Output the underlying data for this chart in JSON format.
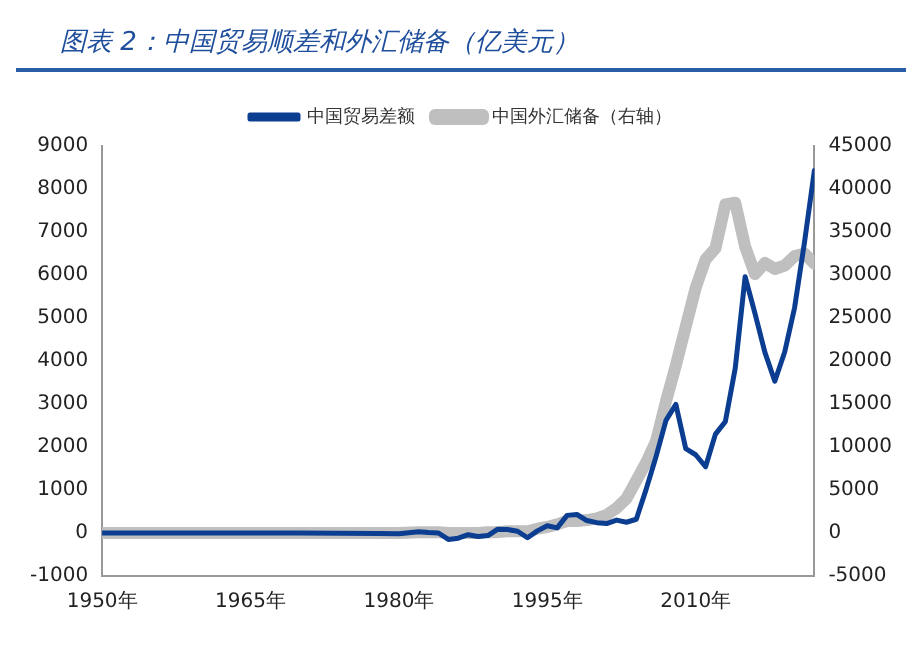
{
  "chart_data": {
    "type": "line",
    "title": "图表 2：中国贸易顺差和外汇储备（亿美元）",
    "x": [
      1950,
      1960,
      1970,
      1978,
      1980,
      1982,
      1983,
      1984,
      1985,
      1986,
      1987,
      1988,
      1989,
      1990,
      1991,
      1992,
      1993,
      1994,
      1995,
      1996,
      1997,
      1998,
      1999,
      2000,
      2001,
      2002,
      2003,
      2004,
      2005,
      2006,
      2007,
      2008,
      2009,
      2010,
      2011,
      2012,
      2013,
      2014,
      2015,
      2016,
      2017,
      2018,
      2019,
      2020,
      2021,
      2022
    ],
    "series": [
      {
        "name": "中国贸易差额",
        "color": "#0b3d91",
        "values": [
          0,
          0,
          0,
          -10,
          -20,
          30,
          10,
          0,
          -150,
          -120,
          -40,
          -80,
          -60,
          90,
          80,
          40,
          -110,
          50,
          170,
          120,
          410,
          430,
          290,
          240,
          220,
          300,
          250,
          320,
          1020,
          1780,
          2620,
          2990,
          1960,
          1820,
          1540,
          2300,
          2590,
          3830,
          5960,
          5100,
          4200,
          3530,
          4210,
          5240,
          6760,
          8430
        ]
      },
      {
        "name": "中国外汇储备（右轴）",
        "color": "#bfbfbf",
        "axis": "y2",
        "values": [
          0,
          0,
          0,
          0,
          0,
          100,
          100,
          100,
          0,
          0,
          0,
          0,
          100,
          100,
          200,
          200,
          200,
          500,
          700,
          1000,
          1400,
          1400,
          1500,
          1700,
          2100,
          2900,
          4000,
          6100,
          8200,
          10700,
          15300,
          19500,
          24000,
          28500,
          31800,
          33100,
          38200,
          38400,
          33300,
          30100,
          31400,
          30700,
          31100,
          32200,
          32500,
          31300
        ]
      }
    ],
    "xlim": [
      1950,
      2022
    ],
    "xticks": [
      {
        "value": 1950,
        "label": "1950年"
      },
      {
        "value": 1965,
        "label": "1965年"
      },
      {
        "value": 1980,
        "label": "1980年"
      },
      {
        "value": 1995,
        "label": "1995年"
      },
      {
        "value": 2010,
        "label": "2010年"
      }
    ],
    "ylim": [
      -1000,
      9000
    ],
    "yticks": [
      -1000,
      0,
      1000,
      2000,
      3000,
      4000,
      5000,
      6000,
      7000,
      8000,
      9000
    ],
    "y2lim": [
      -5000,
      45000
    ],
    "y2ticks": [
      -5000,
      0,
      5000,
      10000,
      15000,
      20000,
      25000,
      30000,
      35000,
      40000,
      45000
    ],
    "grid": false,
    "legend": "top",
    "marker": "none",
    "line_style": "solid"
  }
}
